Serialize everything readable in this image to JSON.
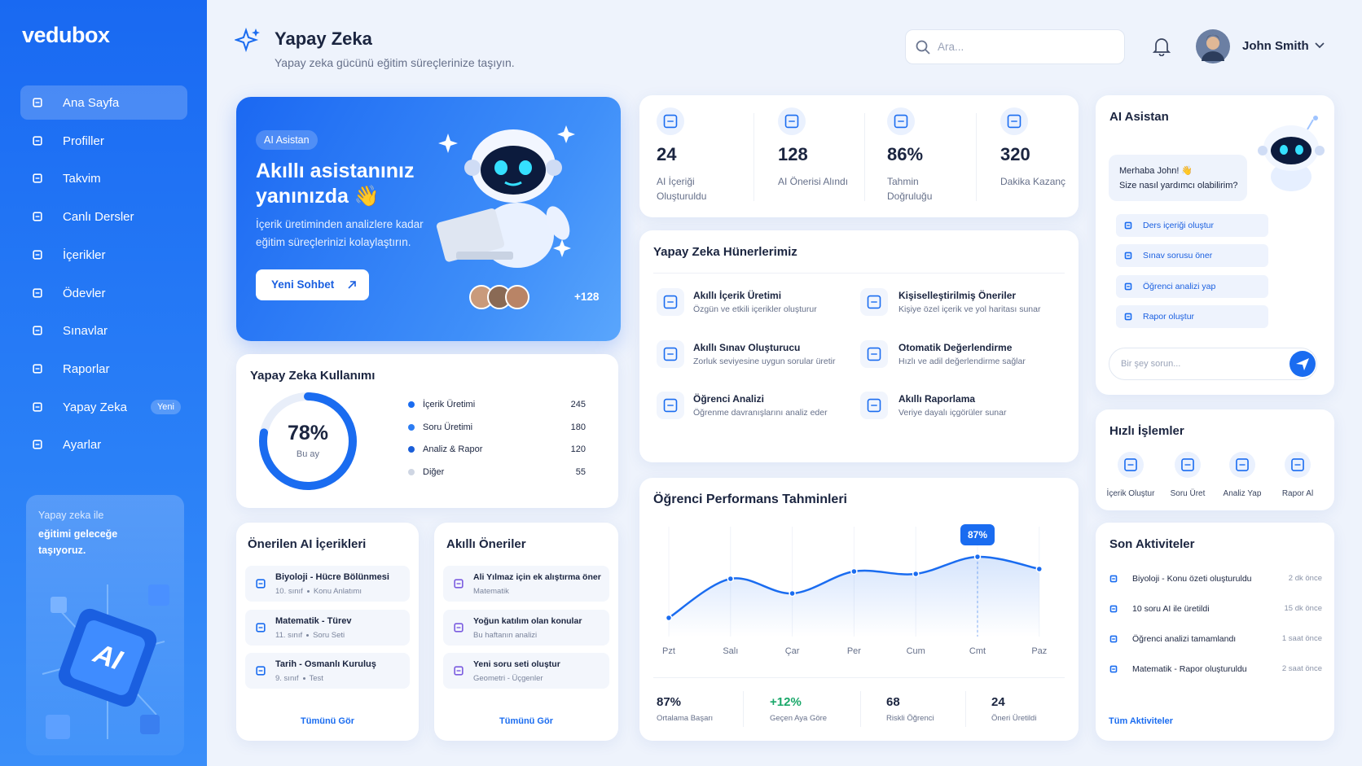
{
  "sidebar": {
    "logo": "vedubox",
    "nav": [
      {
        "label": "Ana Sayfa"
      },
      {
        "label": "Profiller"
      },
      {
        "label": "Takvim"
      },
      {
        "label": "Canlı Dersler"
      },
      {
        "label": "İçerikler"
      },
      {
        "label": "Ödevler"
      },
      {
        "label": "Sınavlar"
      },
      {
        "label": "Raporlar"
      },
      {
        "label": "Yapay Zeka",
        "badge": "Yeni"
      },
      {
        "label": "Ayarlar"
      }
    ],
    "promo": {
      "intro": "Yapay zeka ile",
      "text": "eğitimi geleceğe taşıyoruz.",
      "chip": "AI"
    }
  },
  "header": {
    "title": "Yapay Zeka",
    "subtitle": "Yapay zeka gücünü eğitim süreçlerinize taşıyın.",
    "search_placeholder": "Ara...",
    "user": "John Smith"
  },
  "hero": {
    "badge": "AI Asistan",
    "title": "Akıllı asistanınız yanınızda 👋",
    "text": "İçerik üretiminden analizlere kadar eğitim süreçlerinizi kolaylaştırın.",
    "button": "Yeni Sohbet",
    "more": "+128"
  },
  "stats": [
    {
      "value": 24,
      "label": "AI İçeriği Oluşturuldu"
    },
    {
      "value": 128,
      "label": "AI Önerisi Alındı"
    },
    {
      "value": "86%",
      "label": "Tahmin Doğruluğu"
    },
    {
      "value": 320,
      "label": "Dakika Kazanç"
    }
  ],
  "skills": {
    "title": "Yapay Zeka Hünerlerimiz",
    "items": [
      {
        "name": "Akıllı İçerik Üretimi",
        "desc": "Özgün ve etkili içerikler oluşturur"
      },
      {
        "name": "Kişiselleştirilmiş Öneriler",
        "desc": "Kişiye özel içerik ve yol haritası sunar"
      },
      {
        "name": "Akıllı Sınav Oluşturucu",
        "desc": "Zorluk seviyesine uygun sorular üretir"
      },
      {
        "name": "Otomatik Değerlendirme",
        "desc": "Hızlı ve adil değerlendirme sağlar"
      },
      {
        "name": "Öğrenci Analizi",
        "desc": "Öğrenme davranışlarını analiz eder"
      },
      {
        "name": "Akıllı Raporlama",
        "desc": "Veriye dayalı içgörüler sunar"
      }
    ]
  },
  "chart_data": [
    {
      "type": "donut",
      "title": "Yapay Zeka Kullanımı",
      "value": 78,
      "value_label": "78%",
      "caption": "Bu ay",
      "color": "#1a6cf0",
      "categories": [
        "İçerik Üretimi",
        "Soru Üretimi",
        "Analiz & Rapor",
        "Diğer"
      ],
      "values": [
        245,
        180,
        120,
        55
      ],
      "colors": [
        "#1a6cf0",
        "#2b7cf3",
        "#1a5ed8",
        "#cfd6e3"
      ]
    },
    {
      "type": "line",
      "title": "Öğrenci Performans Tahminleri",
      "categories": [
        "Pzt",
        "Salı",
        "Çar",
        "Per",
        "Cum",
        "Cmt",
        "Paz"
      ],
      "values": [
        62,
        78,
        72,
        81,
        80,
        87,
        82
      ],
      "value_labels": [
        null,
        null,
        null,
        null,
        null,
        "87%",
        null
      ],
      "color": "#1a6cf0"
    }
  ],
  "performance_summary": [
    {
      "value": "87%",
      "label": "Ortalama Başarı"
    },
    {
      "value": "+12%",
      "label": "Geçen Aya Göre"
    },
    {
      "value": 68,
      "label": "Riskli Öğrenci"
    },
    {
      "value": 24,
      "label": "Öneri Üretildi"
    }
  ],
  "recommended": {
    "title": "Önerilen AI İçerikleri",
    "items": [
      {
        "title": "Biyoloji - Hücre Bölünmesi",
        "grade": "10. sınıf",
        "kind": "Konu Anlatımı"
      },
      {
        "title": "Matematik - Türev",
        "grade": "11. sınıf",
        "kind": "Soru Seti"
      },
      {
        "title": "Tarih - Osmanlı Kuruluş",
        "grade": "9. sınıf",
        "kind": "Test"
      }
    ],
    "link": "Tümünü Gör"
  },
  "smart": {
    "title": "Akıllı Öneriler",
    "items": [
      {
        "title": "Ali Yılmaz için ek alıştırma öner",
        "meta": "Matematik"
      },
      {
        "title": "Yoğun katılım olan konular",
        "meta": "Bu haftanın analizi"
      },
      {
        "title": "Yeni soru seti oluştur",
        "meta": "Geometri - Üçgenler"
      }
    ],
    "link": "Tümünü Gör"
  },
  "assistant": {
    "title": "AI Asistan",
    "greeting": "Merhaba John! 👋",
    "question": "Size nasıl yardımcı olabilirim?",
    "actions": [
      "Ders içeriği oluştur",
      "Sınav sorusu öner",
      "Öğrenci analizi yap",
      "Rapor oluştur"
    ],
    "input_placeholder": "Bir şey sorun..."
  },
  "quick_actions": {
    "title": "Hızlı İşlemler",
    "items": [
      "İçerik Oluştur",
      "Soru Üret",
      "Analiz Yap",
      "Rapor Al"
    ]
  },
  "activities": {
    "title": "Son Aktiviteler",
    "items": [
      {
        "text": "Biyoloji - Konu özeti oluşturuldu",
        "time": "2 dk önce"
      },
      {
        "text": "10 soru AI ile üretildi",
        "time": "15 dk önce"
      },
      {
        "text": "Öğrenci analizi tamamlandı",
        "time": "1 saat önce"
      },
      {
        "text": "Matematik - Rapor oluşturuldu",
        "time": "2 saat önce"
      }
    ],
    "link": "Tüm Aktiviteler"
  }
}
